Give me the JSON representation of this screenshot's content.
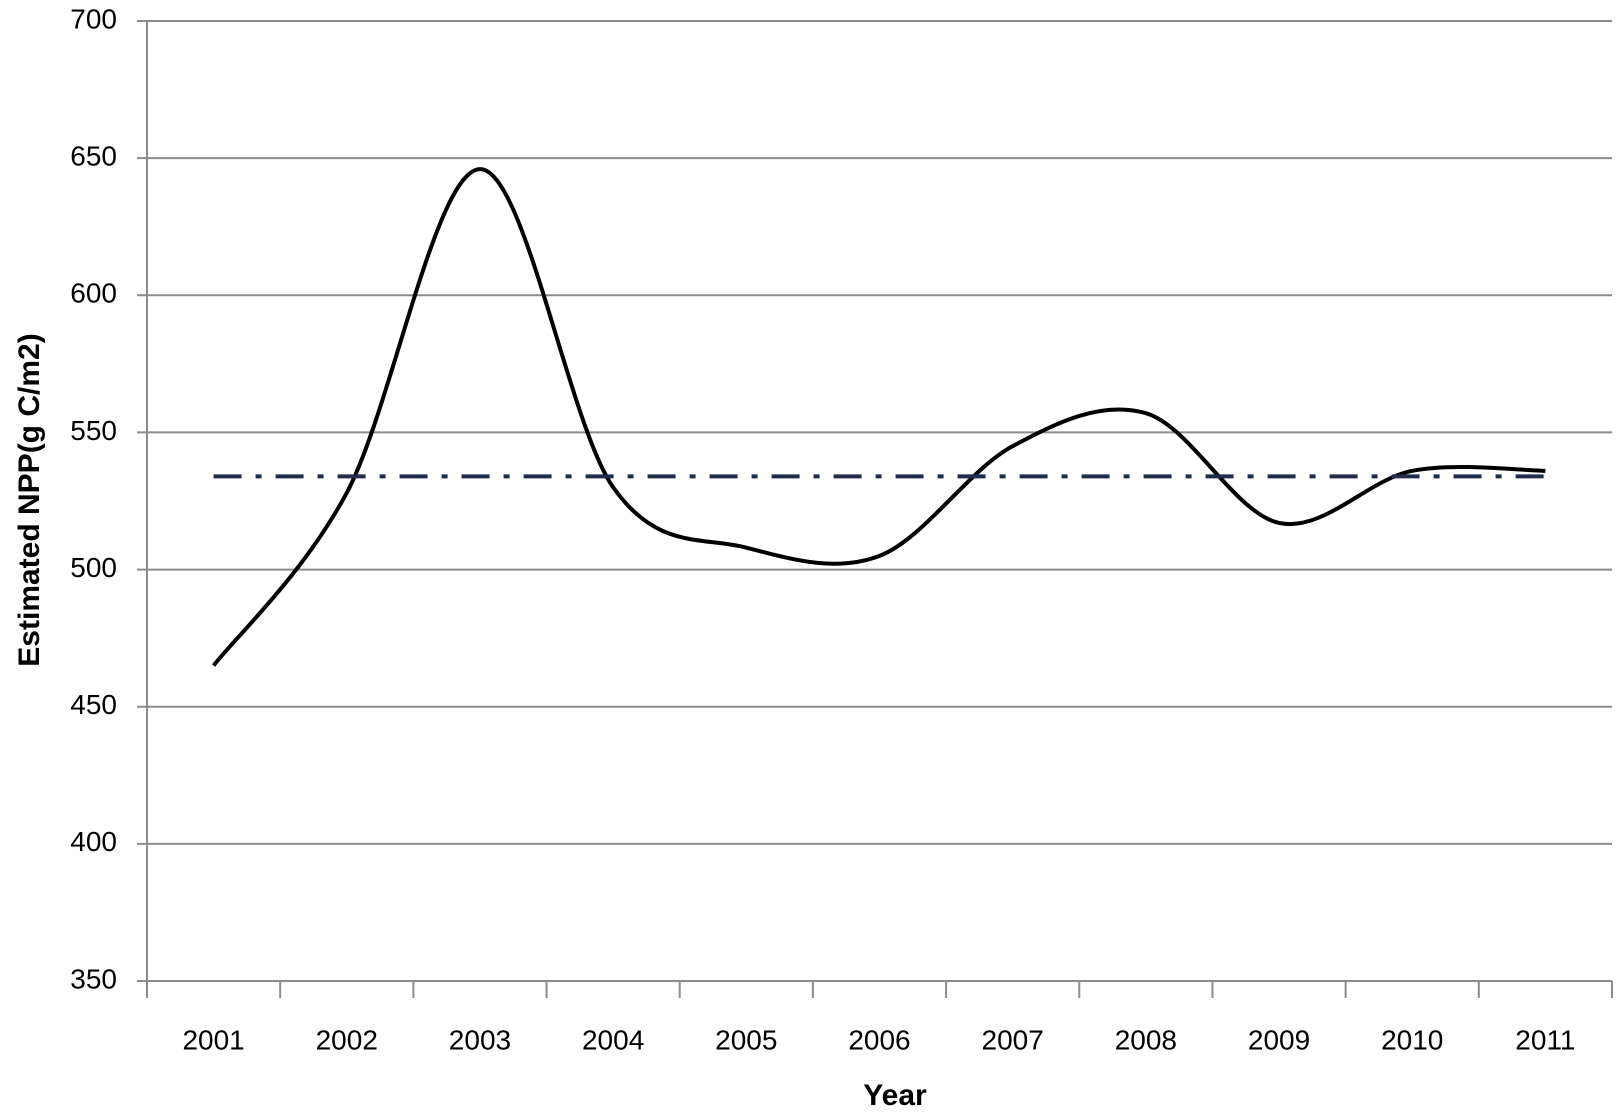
{
  "chart_data": {
    "type": "line",
    "x_label": "Year",
    "y_label": "Estimated  NPP(g C/m2)",
    "categories": [
      "2001",
      "2002",
      "2003",
      "2004",
      "2005",
      "2006",
      "2007",
      "2008",
      "2009",
      "2010",
      "2011"
    ],
    "series": [
      {
        "color": "#000000",
        "smooth": true,
        "dash": "solid",
        "values": [
          465,
          528,
          646,
          530,
          508,
          505,
          545,
          557,
          517,
          536,
          536
        ]
      },
      {
        "color": "#1f2d4a",
        "smooth": false,
        "dash": "dash-dot",
        "values": [
          534,
          534,
          534,
          534,
          534,
          534,
          534,
          534,
          534,
          534,
          534
        ]
      }
    ],
    "ylim": [
      350,
      700
    ],
    "yticks": [
      350,
      400,
      450,
      500,
      550,
      600,
      650,
      700
    ],
    "grid": true
  }
}
